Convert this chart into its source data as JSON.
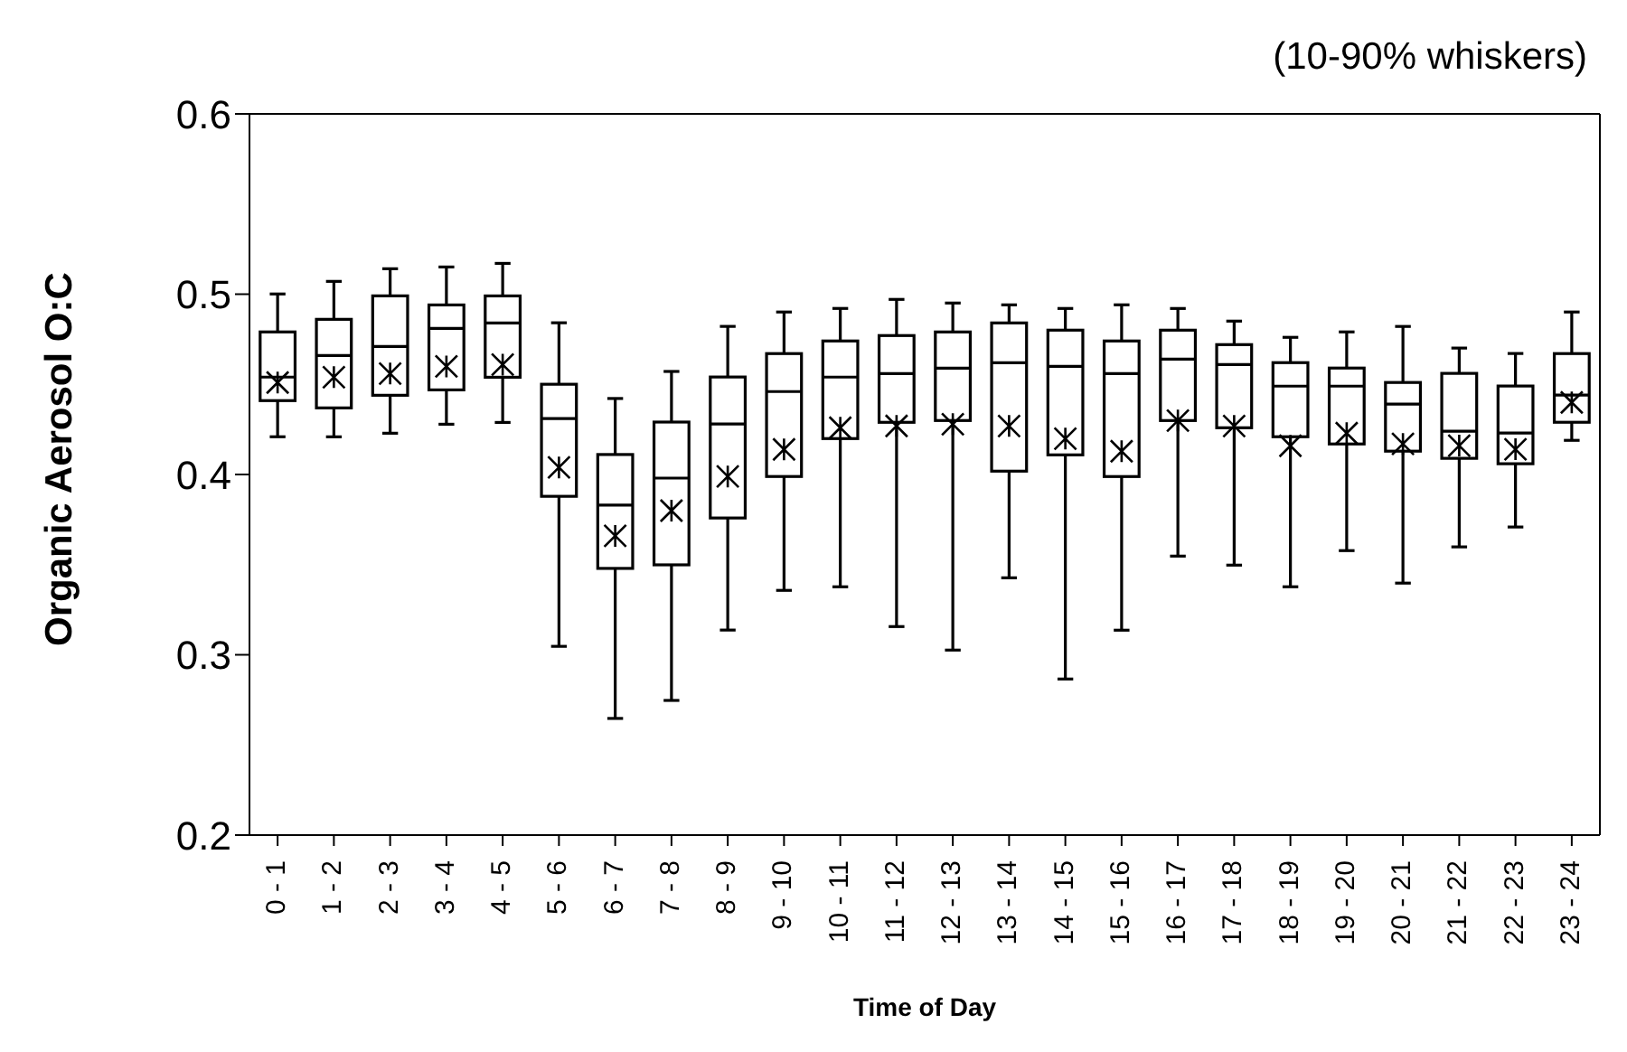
{
  "chart_data": {
    "type": "box",
    "xlabel": "Time of Day",
    "ylabel": "Organic Aerosol O:C",
    "annotations": [
      "(10-90% whiskers)"
    ],
    "categories": [
      "0 - 1",
      "1 - 2",
      "2 - 3",
      "3 - 4",
      "4 - 5",
      "5 - 6",
      "6 - 7",
      "7 - 8",
      "8 - 9",
      "9 - 10",
      "10 - 11",
      "11 - 12",
      "12 - 13",
      "13 - 14",
      "14 - 15",
      "15 - 16",
      "16 - 17",
      "17 - 18",
      "18 - 19",
      "19 - 20",
      "20 - 21",
      "21 - 22",
      "22 - 23",
      "23 - 24"
    ],
    "boxes": [
      {
        "low": 0.421,
        "q1": 0.441,
        "median": 0.454,
        "q3": 0.479,
        "high": 0.5,
        "mean": 0.451
      },
      {
        "low": 0.421,
        "q1": 0.437,
        "median": 0.466,
        "q3": 0.486,
        "high": 0.507,
        "mean": 0.454
      },
      {
        "low": 0.423,
        "q1": 0.444,
        "median": 0.471,
        "q3": 0.499,
        "high": 0.514,
        "mean": 0.456
      },
      {
        "low": 0.428,
        "q1": 0.447,
        "median": 0.481,
        "q3": 0.494,
        "high": 0.515,
        "mean": 0.46
      },
      {
        "low": 0.429,
        "q1": 0.454,
        "median": 0.484,
        "q3": 0.499,
        "high": 0.517,
        "mean": 0.461
      },
      {
        "low": 0.305,
        "q1": 0.388,
        "median": 0.431,
        "q3": 0.45,
        "high": 0.484,
        "mean": 0.404
      },
      {
        "low": 0.265,
        "q1": 0.348,
        "median": 0.383,
        "q3": 0.411,
        "high": 0.442,
        "mean": 0.366
      },
      {
        "low": 0.275,
        "q1": 0.35,
        "median": 0.398,
        "q3": 0.429,
        "high": 0.457,
        "mean": 0.38
      },
      {
        "low": 0.314,
        "q1": 0.376,
        "median": 0.428,
        "q3": 0.454,
        "high": 0.482,
        "mean": 0.399
      },
      {
        "low": 0.336,
        "q1": 0.399,
        "median": 0.446,
        "q3": 0.467,
        "high": 0.49,
        "mean": 0.414
      },
      {
        "low": 0.338,
        "q1": 0.42,
        "median": 0.454,
        "q3": 0.474,
        "high": 0.492,
        "mean": 0.426
      },
      {
        "low": 0.316,
        "q1": 0.429,
        "median": 0.456,
        "q3": 0.477,
        "high": 0.497,
        "mean": 0.427
      },
      {
        "low": 0.303,
        "q1": 0.43,
        "median": 0.459,
        "q3": 0.479,
        "high": 0.495,
        "mean": 0.428
      },
      {
        "low": 0.343,
        "q1": 0.402,
        "median": 0.462,
        "q3": 0.484,
        "high": 0.494,
        "mean": 0.427
      },
      {
        "low": 0.287,
        "q1": 0.411,
        "median": 0.46,
        "q3": 0.48,
        "high": 0.492,
        "mean": 0.42
      },
      {
        "low": 0.314,
        "q1": 0.399,
        "median": 0.456,
        "q3": 0.474,
        "high": 0.494,
        "mean": 0.413
      },
      {
        "low": 0.355,
        "q1": 0.43,
        "median": 0.464,
        "q3": 0.48,
        "high": 0.492,
        "mean": 0.43
      },
      {
        "low": 0.35,
        "q1": 0.426,
        "median": 0.461,
        "q3": 0.472,
        "high": 0.485,
        "mean": 0.427
      },
      {
        "low": 0.338,
        "q1": 0.421,
        "median": 0.449,
        "q3": 0.462,
        "high": 0.476,
        "mean": 0.416
      },
      {
        "low": 0.358,
        "q1": 0.417,
        "median": 0.449,
        "q3": 0.459,
        "high": 0.479,
        "mean": 0.423
      },
      {
        "low": 0.34,
        "q1": 0.413,
        "median": 0.439,
        "q3": 0.451,
        "high": 0.482,
        "mean": 0.417
      },
      {
        "low": 0.36,
        "q1": 0.409,
        "median": 0.424,
        "q3": 0.456,
        "high": 0.47,
        "mean": 0.416
      },
      {
        "low": 0.371,
        "q1": 0.406,
        "median": 0.423,
        "q3": 0.449,
        "high": 0.467,
        "mean": 0.414
      },
      {
        "low": 0.419,
        "q1": 0.429,
        "median": 0.444,
        "q3": 0.467,
        "high": 0.49,
        "mean": 0.44
      }
    ],
    "color": "#000000",
    "ylim": [
      0.2,
      0.6
    ],
    "yticks": [
      0.2,
      0.3,
      0.4,
      0.5,
      0.6
    ]
  }
}
